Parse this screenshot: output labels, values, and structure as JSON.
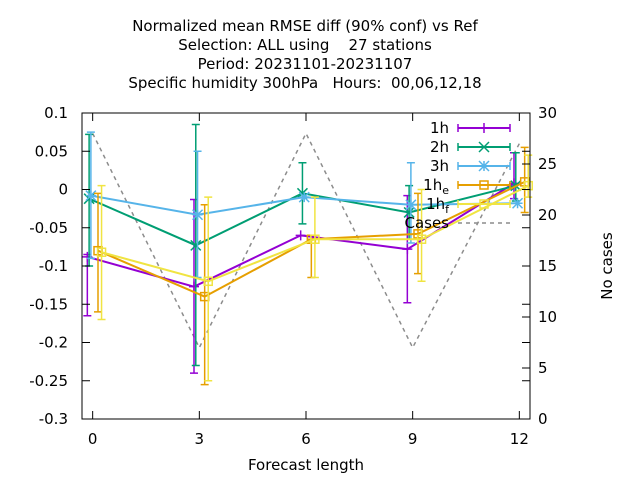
{
  "chart_data": {
    "type": "line",
    "title_lines": [
      "Normalized mean RMSE diff (90% conf) vs Ref",
      "Selection: ALL using    27 stations",
      "Period: 20231101-20231107",
      "Specific humidity 300hPa   Hours:  00,06,12,18"
    ],
    "xlabel": "Forecast length",
    "ylabel_right": "No cases",
    "xlim": [
      -0.3,
      12.3
    ],
    "ylim": [
      -0.3,
      0.1
    ],
    "y2lim": [
      0,
      30
    ],
    "x_ticks": [
      "0",
      "3",
      "6",
      "9",
      "12"
    ],
    "x_tick_values": [
      0,
      3,
      6,
      9,
      12
    ],
    "y_ticks": [
      "0.1",
      "0.05",
      "0",
      "-0.05",
      "-0.1",
      "-0.15",
      "-0.2",
      "-0.25",
      "-0.3"
    ],
    "y_tick_values": [
      0.1,
      0.05,
      0,
      -0.05,
      -0.1,
      -0.15,
      -0.2,
      -0.25,
      -0.3
    ],
    "y2_ticks": [
      "30",
      "25",
      "20",
      "15",
      "10",
      "5",
      "0"
    ],
    "y2_tick_values": [
      30,
      25,
      20,
      15,
      10,
      5,
      0
    ],
    "grid": false,
    "legend_position": "top-right",
    "series": [
      {
        "label": "1h",
        "color": "#9400d3",
        "marker": "plus",
        "x": [
          -0.15,
          2.85,
          5.85,
          8.85,
          11.85
        ],
        "y": [
          -0.088,
          -0.127,
          -0.06,
          -0.078,
          0.008
        ],
        "err_low": [
          -0.165,
          -0.24,
          -0.06,
          -0.148,
          -0.012
        ],
        "err_high": [
          -0.085,
          -0.013,
          -0.06,
          -0.008,
          0.048
        ]
      },
      {
        "label": "2h",
        "color": "#009e73",
        "marker": "x",
        "x": [
          -0.1,
          2.9,
          5.9,
          8.9,
          11.9
        ],
        "y": [
          -0.012,
          -0.073,
          -0.005,
          -0.03,
          0.005
        ],
        "err_low": [
          -0.1,
          -0.23,
          -0.045,
          -0.065,
          -0.015
        ],
        "err_high": [
          0.072,
          0.085,
          0.035,
          0.005,
          0.048
        ]
      },
      {
        "label": "3h",
        "color": "#56b4e9",
        "marker": "star",
        "x": [
          -0.05,
          2.95,
          5.95,
          8.95,
          11.95
        ],
        "y": [
          -0.008,
          -0.033,
          -0.01,
          -0.02,
          -0.018
        ],
        "err_low": [
          -0.09,
          -0.115,
          -0.01,
          -0.07,
          -0.018
        ],
        "err_high": [
          0.075,
          0.05,
          -0.01,
          0.035,
          -0.018
        ]
      },
      {
        "label": "1h",
        "label_sub": "e",
        "color": "#e69f00",
        "marker": "square",
        "x": [
          0.15,
          3.15,
          6.15,
          9.15,
          12.15
        ],
        "y": [
          -0.08,
          -0.14,
          -0.065,
          -0.058,
          0.01
        ],
        "err_low": [
          -0.16,
          -0.255,
          -0.115,
          -0.11,
          -0.03
        ],
        "err_high": [
          -0.005,
          -0.02,
          -0.065,
          -0.005,
          0.055
        ]
      },
      {
        "label": "1h",
        "label_sub": "f",
        "color": "#f0e442",
        "marker": "square",
        "x": [
          0.25,
          3.25,
          6.25,
          9.25,
          12.25
        ],
        "y": [
          -0.082,
          -0.12,
          -0.065,
          -0.065,
          0.005
        ],
        "err_low": [
          -0.17,
          -0.25,
          -0.115,
          -0.12,
          -0.01
        ],
        "err_high": [
          0.005,
          -0.01,
          -0.01,
          0.0,
          0.045
        ]
      }
    ],
    "cases": {
      "label": "Cases",
      "color": "#8c8c8c",
      "x": [
        0,
        3,
        6,
        9,
        12
      ],
      "y": [
        28,
        7,
        28,
        7,
        27
      ]
    }
  }
}
